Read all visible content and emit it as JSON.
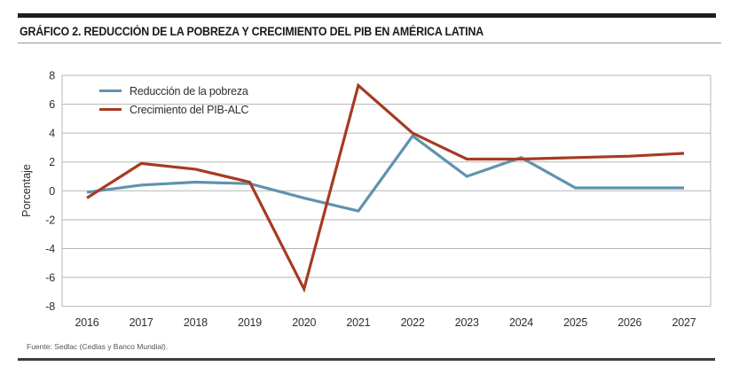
{
  "header": {
    "title": "GRÁFICO 2. REDUCCIÓN DE LA POBREZA Y CRECIMIENTO DEL PIB EN AMÉRICA LATINA"
  },
  "footer": {
    "source": "Fuente: Sedlac (Cedlas y Banco Mundial)."
  },
  "chart_data": {
    "type": "line",
    "title": "GRÁFICO 2. REDUCCIÓN DE LA POBREZA Y CRECIMIENTO DEL PIB EN AMÉRICA LATINA",
    "xlabel": "",
    "ylabel": "Porcentaje",
    "categories": [
      "2016",
      "2017",
      "2018",
      "2019",
      "2020",
      "2021",
      "2022",
      "2023",
      "2024",
      "2025",
      "2026",
      "2027"
    ],
    "series": [
      {
        "name": "Reducción de la pobreza",
        "color": "#5e93ae",
        "values": [
          -0.1,
          0.4,
          0.6,
          0.5,
          -0.5,
          -1.4,
          3.8,
          1.0,
          2.3,
          0.2,
          0.2,
          0.2
        ]
      },
      {
        "name": "Crecimiento del PIB-ALC",
        "color": "#a63b22",
        "values": [
          -0.5,
          1.9,
          1.5,
          0.6,
          -6.8,
          7.3,
          4.0,
          2.2,
          2.2,
          2.3,
          2.4,
          2.6
        ]
      }
    ],
    "ylim": [
      -8,
      8
    ],
    "y_ticks": [
      "8",
      "6",
      "4",
      "2",
      "0",
      "-2",
      "-4",
      "-6",
      "-8"
    ],
    "grid": true,
    "grid_color": "#b6b6b6",
    "legend_position": "top-left"
  }
}
